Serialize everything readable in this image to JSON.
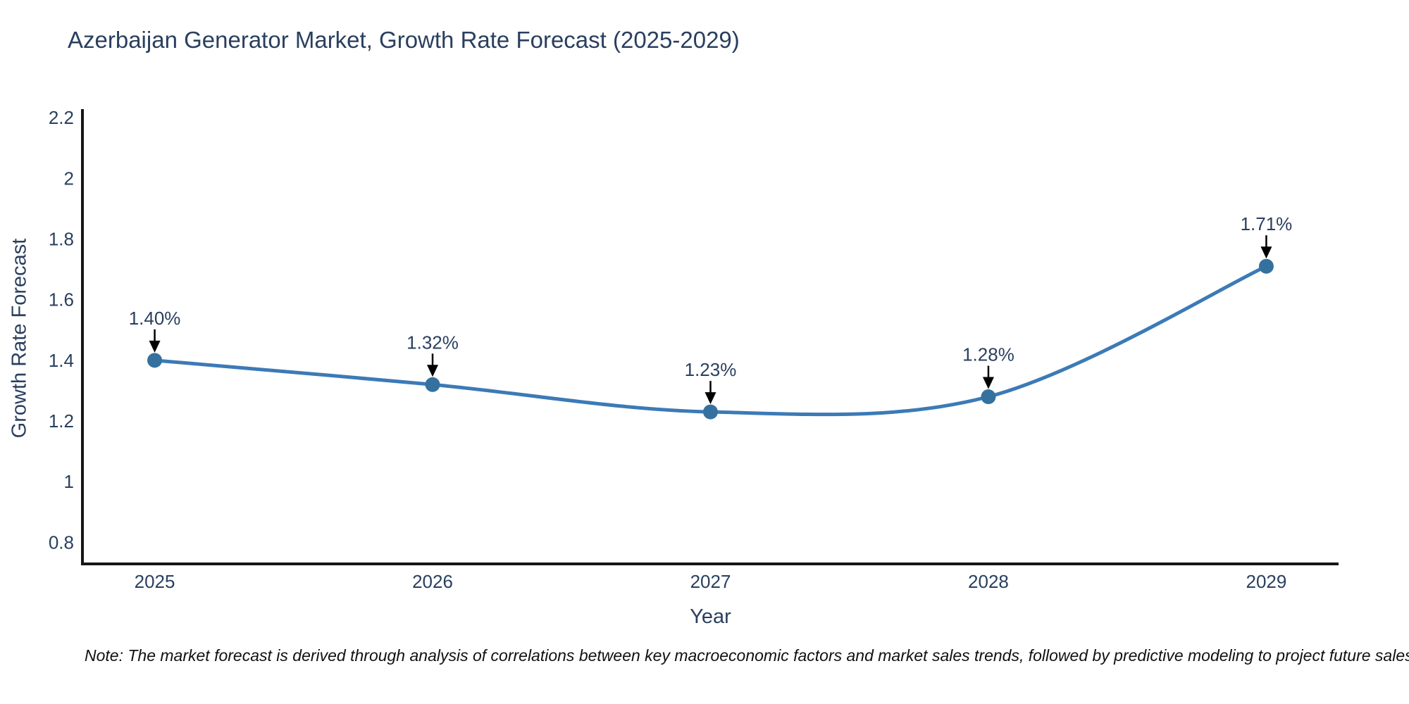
{
  "title": "Azerbaijan Generator Market, Growth Rate Forecast (2025-2029)",
  "note": "Note: The market forecast is derived through analysis of correlations between key macroeconomic factors and market sales trends, followed by predictive modeling to project future sales",
  "chart_data": {
    "type": "line",
    "title": "Azerbaijan Generator Market, Growth Rate Forecast (2025-2029)",
    "xlabel": "Year",
    "ylabel": "Growth Rate Forecast",
    "x": [
      2025,
      2026,
      2027,
      2028,
      2029
    ],
    "categories": [
      "2025",
      "2026",
      "2027",
      "2028",
      "2029"
    ],
    "values": [
      1.4,
      1.32,
      1.23,
      1.28,
      1.71
    ],
    "point_labels": [
      "1.40%",
      "1.32%",
      "1.23%",
      "1.28%",
      "1.71%"
    ],
    "yticks": [
      0.8,
      1,
      1.2,
      1.4,
      1.6,
      1.8,
      2,
      2.2
    ],
    "ytick_labels": [
      "0.8",
      "1",
      "1.2",
      "1.4",
      "1.6",
      "1.8",
      "2",
      "2.2"
    ],
    "xlim": [
      2024.74,
      2029.26
    ],
    "ylim": [
      0.729,
      2.228
    ],
    "grid": false,
    "legend": "none",
    "line_shape": "spline",
    "colors": {
      "line": "#3c7ab6",
      "marker": "#35719f",
      "text": "#2a3f5f",
      "axis_line": "#161616",
      "annotation_arrow": "#000000",
      "background": "#ffffff"
    }
  }
}
